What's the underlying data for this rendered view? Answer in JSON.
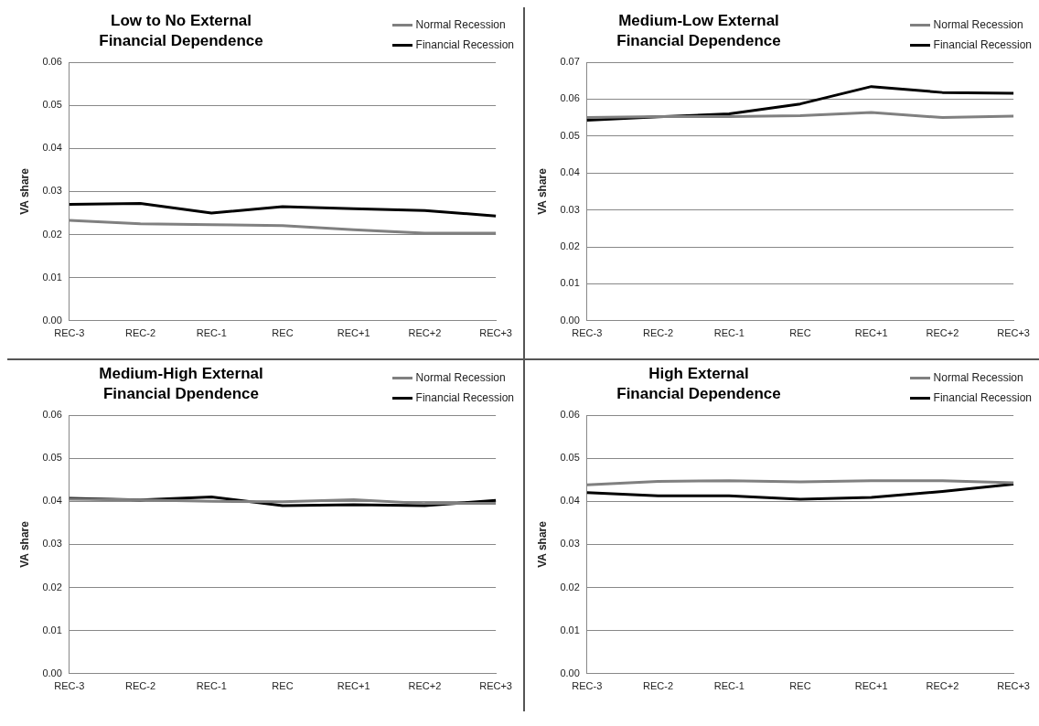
{
  "chart_data": [
    {
      "type": "line",
      "title": "Low to No External\nFinancial Dependence",
      "ylabel": "VA share",
      "categories": [
        "REC-3",
        "REC-2",
        "REC-1",
        "REC",
        "REC+1",
        "REC+2",
        "REC+3"
      ],
      "series": [
        {
          "name": "Normal Recession",
          "color": "#808080",
          "values": [
            0.0233,
            0.0225,
            0.0223,
            0.0221,
            0.0211,
            0.0203,
            0.0203
          ]
        },
        {
          "name": "Financial Recession",
          "color": "#000000",
          "values": [
            0.027,
            0.0272,
            0.025,
            0.0265,
            0.026,
            0.0256,
            0.0243
          ]
        }
      ],
      "ylim": [
        0,
        0.06
      ],
      "yticks": [
        {
          "value": 0,
          "label": "0.00"
        },
        {
          "value": 0.01,
          "label": "0.01"
        },
        {
          "value": 0.02,
          "label": "0.02"
        },
        {
          "value": 0.03,
          "label": "0.03"
        },
        {
          "value": 0.04,
          "label": "0.04"
        },
        {
          "value": 0.05,
          "label": "0.05"
        },
        {
          "value": 0.06,
          "label": "0.06"
        }
      ],
      "grid": "y",
      "legend": "top right",
      "marker": "none"
    },
    {
      "type": "line",
      "title": "Medium-Low External\nFinancial Dependence",
      "ylabel": "VA share",
      "categories": [
        "REC-3",
        "REC-2",
        "REC-1",
        "REC",
        "REC+1",
        "REC+2",
        "REC+3"
      ],
      "series": [
        {
          "name": "Normal Recession",
          "color": "#808080",
          "values": [
            0.055,
            0.0553,
            0.0553,
            0.0555,
            0.0564,
            0.055,
            0.0554
          ]
        },
        {
          "name": "Financial Recession",
          "color": "#000000",
          "values": [
            0.0543,
            0.0552,
            0.056,
            0.0587,
            0.0634,
            0.0618,
            0.0616
          ]
        }
      ],
      "ylim": [
        0,
        0.07
      ],
      "yticks": [
        {
          "value": 0,
          "label": "0.00"
        },
        {
          "value": 0.01,
          "label": "0.01"
        },
        {
          "value": 0.02,
          "label": "0.02"
        },
        {
          "value": 0.03,
          "label": "0.03"
        },
        {
          "value": 0.04,
          "label": "0.04"
        },
        {
          "value": 0.05,
          "label": "0.05"
        },
        {
          "value": 0.06,
          "label": "0.06"
        },
        {
          "value": 0.07,
          "label": "0.07"
        }
      ],
      "grid": "y",
      "legend": "top right",
      "marker": "none"
    },
    {
      "type": "line",
      "title": "Medium-High External\nFinancial Dpendence",
      "ylabel": "VA share",
      "categories": [
        "REC-3",
        "REC-2",
        "REC-1",
        "REC",
        "REC+1",
        "REC+2",
        "REC+3"
      ],
      "series": [
        {
          "name": "Normal Recession",
          "color": "#808080",
          "values": [
            0.0405,
            0.0403,
            0.04,
            0.0399,
            0.0404,
            0.0395,
            0.0395
          ]
        },
        {
          "name": "Financial Recession",
          "color": "#000000",
          "values": [
            0.0407,
            0.0403,
            0.041,
            0.039,
            0.0392,
            0.039,
            0.0402
          ]
        }
      ],
      "ylim": [
        0,
        0.06
      ],
      "yticks": [
        {
          "value": 0,
          "label": "0.00"
        },
        {
          "value": 0.01,
          "label": "0.01"
        },
        {
          "value": 0.02,
          "label": "0.02"
        },
        {
          "value": 0.03,
          "label": "0.03"
        },
        {
          "value": 0.04,
          "label": "0.04"
        },
        {
          "value": 0.05,
          "label": "0.05"
        },
        {
          "value": 0.06,
          "label": "0.06"
        }
      ],
      "grid": "y",
      "legend": "top right",
      "marker": "none"
    },
    {
      "type": "line",
      "title": "High External\nFinancial Dependence",
      "ylabel": "VA share",
      "categories": [
        "REC-3",
        "REC-2",
        "REC-1",
        "REC",
        "REC+1",
        "REC+2",
        "REC+3"
      ],
      "series": [
        {
          "name": "Normal Recession",
          "color": "#808080",
          "values": [
            0.0438,
            0.0446,
            0.0448,
            0.0445,
            0.0448,
            0.0448,
            0.0443
          ]
        },
        {
          "name": "Financial Recession",
          "color": "#000000",
          "values": [
            0.042,
            0.0413,
            0.0413,
            0.0405,
            0.0409,
            0.0423,
            0.044
          ]
        }
      ],
      "ylim": [
        0,
        0.06
      ],
      "yticks": [
        {
          "value": 0,
          "label": "0.00"
        },
        {
          "value": 0.01,
          "label": "0.01"
        },
        {
          "value": 0.02,
          "label": "0.02"
        },
        {
          "value": 0.03,
          "label": "0.03"
        },
        {
          "value": 0.04,
          "label": "0.04"
        },
        {
          "value": 0.05,
          "label": "0.05"
        },
        {
          "value": 0.06,
          "label": "0.06"
        }
      ],
      "grid": "y",
      "legend": "top right",
      "marker": "none"
    }
  ]
}
